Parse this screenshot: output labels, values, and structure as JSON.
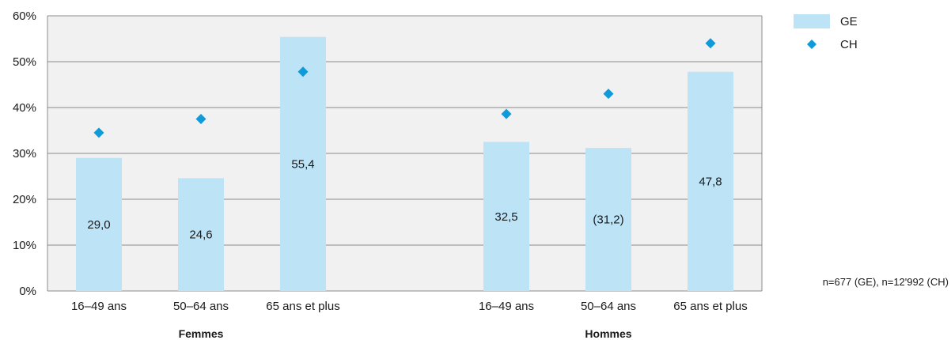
{
  "chart_data": {
    "type": "bar",
    "groups": [
      {
        "label": "Femmes",
        "categories": [
          "16–49 ans",
          "50–64 ans",
          "65 ans et plus"
        ]
      },
      {
        "label": "Hommes",
        "categories": [
          "16–49 ans",
          "50–64 ans",
          "65 ans et plus"
        ]
      }
    ],
    "series": [
      {
        "name": "GE",
        "mark": "bar",
        "values": [
          29.0,
          24.6,
          55.4,
          32.5,
          31.2,
          47.8
        ],
        "labels": [
          "29,0",
          "24,6",
          "55,4",
          "32,5",
          "(31,2)",
          "47,8"
        ]
      },
      {
        "name": "CH",
        "mark": "diamond",
        "values": [
          34.5,
          37.5,
          47.8,
          38.6,
          43.0,
          54.0
        ]
      }
    ],
    "ylim": [
      0,
      60
    ],
    "yticks": [
      0,
      10,
      20,
      30,
      40,
      50,
      60
    ],
    "ytick_labels": [
      "0%",
      "10%",
      "20%",
      "30%",
      "40%",
      "50%",
      "60%"
    ],
    "grid": true,
    "legend_position": "top-right",
    "note": "n=677 (GE), n=12'992 (CH)"
  },
  "colors": {
    "bar": "#bde3f6",
    "marker": "#0f9ad9",
    "plot_bg": "#f1f1f1",
    "grid": "#8c8c8c"
  }
}
